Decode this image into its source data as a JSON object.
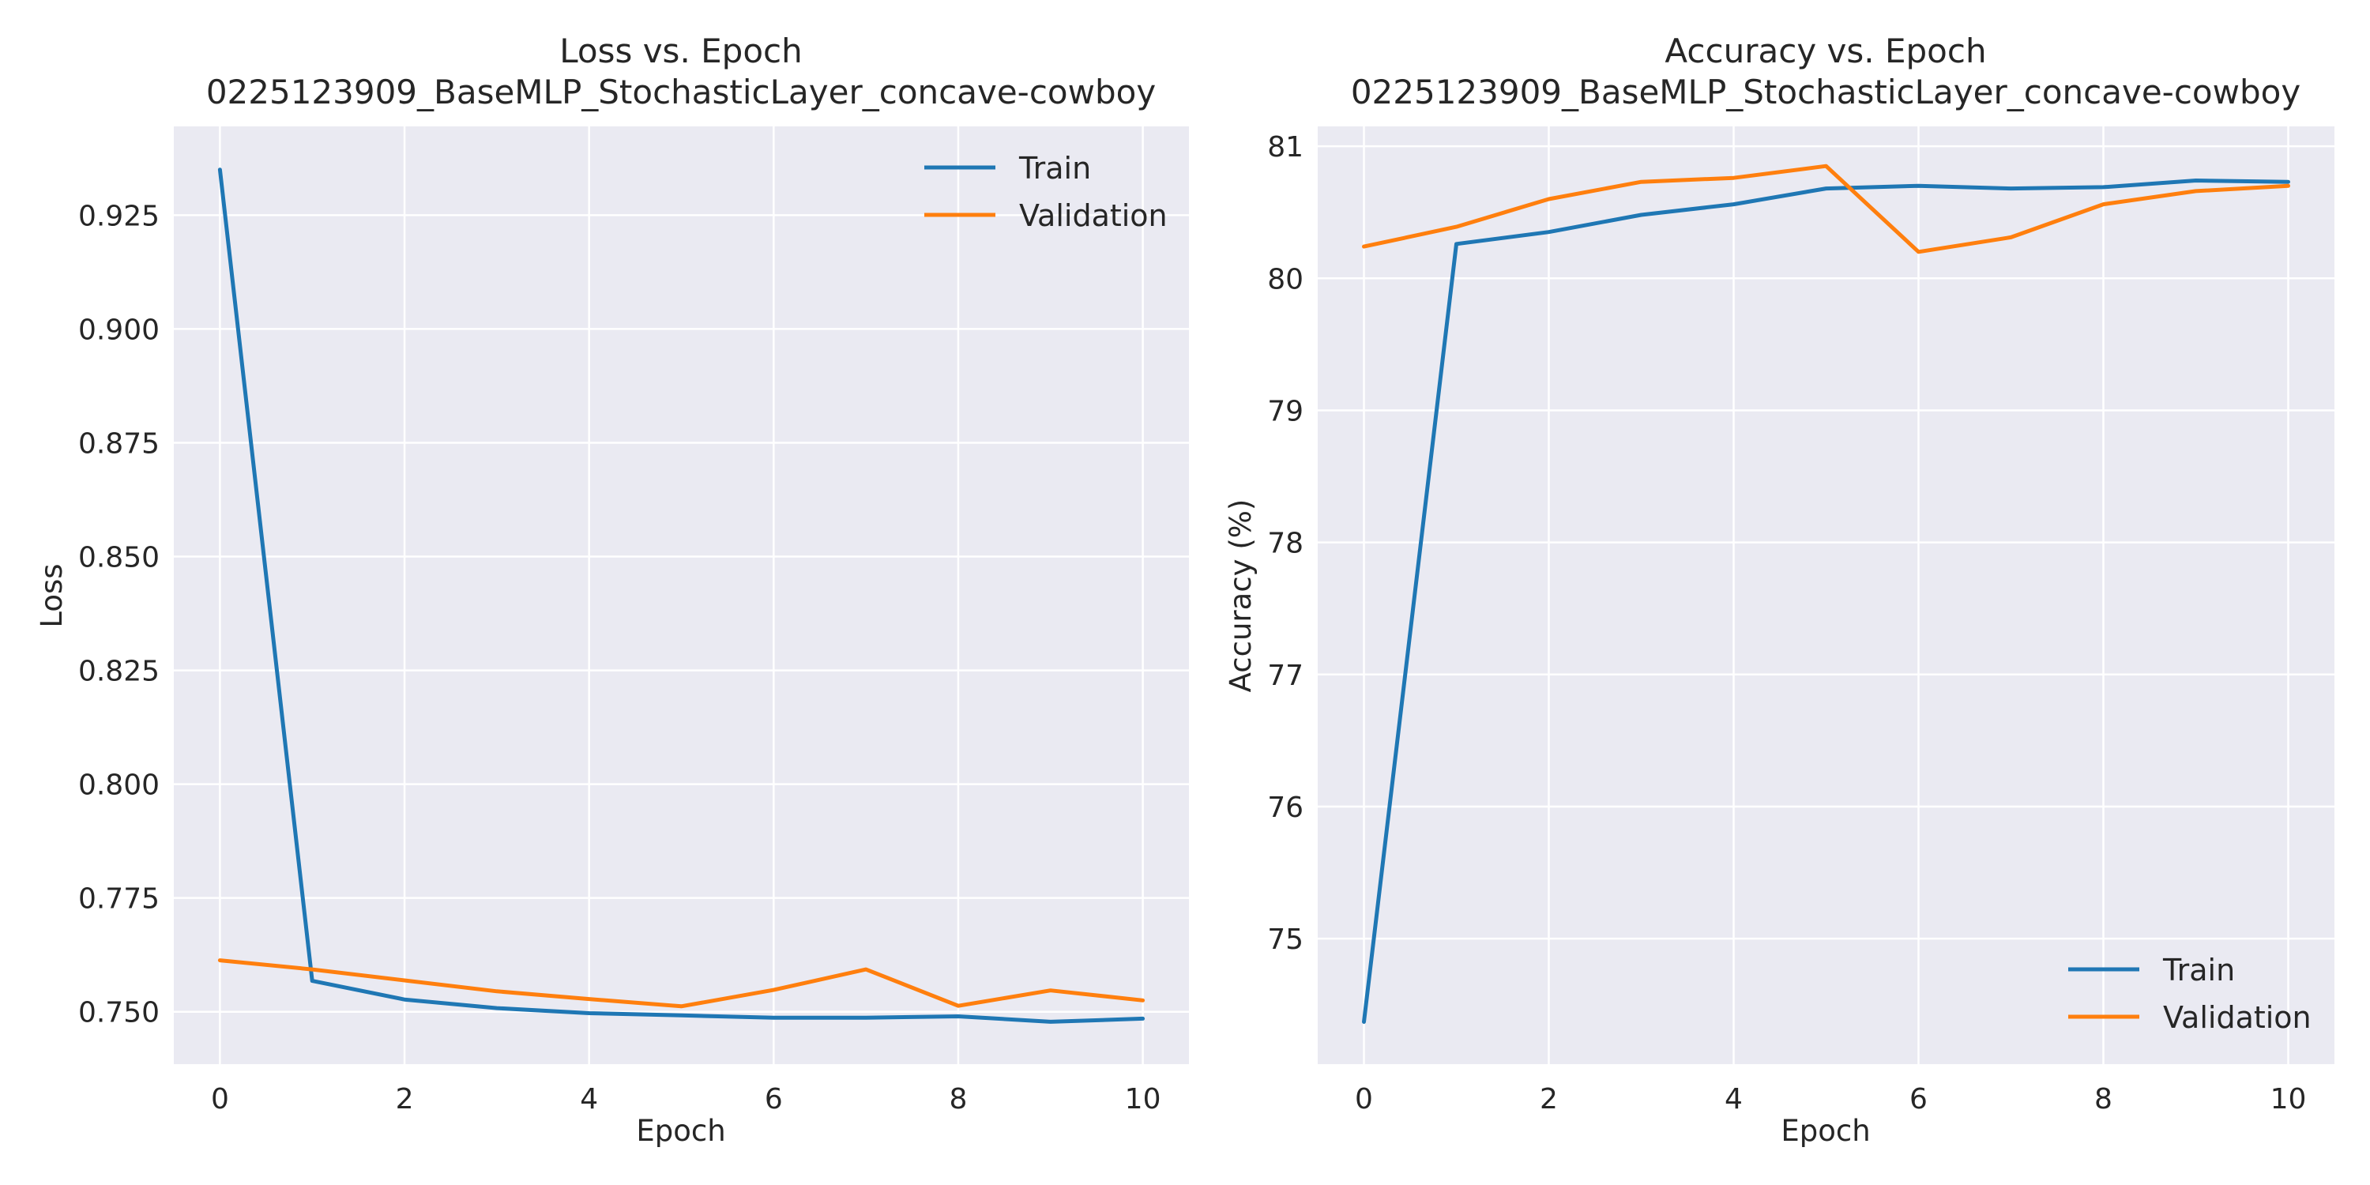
{
  "chart_data": [
    {
      "type": "line",
      "title_line1": "Loss vs. Epoch",
      "title_line2": "0225123909_BaseMLP_StochasticLayer_concave-cowboy",
      "xlabel": "Epoch",
      "ylabel": "Loss",
      "xlim": [
        -0.5,
        10.5
      ],
      "ylim": [
        0.7385,
        0.9445
      ],
      "xticks": [
        0,
        2,
        4,
        6,
        8,
        10
      ],
      "yticks": [
        0.75,
        0.775,
        0.8,
        0.825,
        0.85,
        0.875,
        0.9,
        0.925
      ],
      "ytick_decimals": 3,
      "grid": true,
      "legend_position": "top-right",
      "x": [
        0,
        1,
        2,
        3,
        4,
        5,
        6,
        7,
        8,
        9,
        10
      ],
      "series": [
        {
          "name": "Train",
          "color": "#1f77b4",
          "values": [
            0.935,
            0.7568,
            0.7527,
            0.7508,
            0.7497,
            0.7492,
            0.7487,
            0.7487,
            0.749,
            0.7478,
            0.7485
          ]
        },
        {
          "name": "Validation",
          "color": "#ff7f0e",
          "values": [
            0.7613,
            0.7593,
            0.7569,
            0.7545,
            0.7528,
            0.7512,
            0.7548,
            0.7593,
            0.7513,
            0.7547,
            0.7525
          ]
        }
      ]
    },
    {
      "type": "line",
      "title_line1": "Accuracy vs. Epoch",
      "title_line2": "0225123909_BaseMLP_StochasticLayer_concave-cowboy",
      "xlabel": "Epoch",
      "ylabel": "Accuracy (%)",
      "xlim": [
        -0.5,
        10.5
      ],
      "ylim": [
        74.05,
        81.15
      ],
      "xticks": [
        0,
        2,
        4,
        6,
        8,
        10
      ],
      "yticks": [
        75,
        76,
        77,
        78,
        79,
        80,
        81
      ],
      "ytick_decimals": 0,
      "grid": true,
      "legend_position": "bottom-right",
      "x": [
        0,
        1,
        2,
        3,
        4,
        5,
        6,
        7,
        8,
        9,
        10
      ],
      "series": [
        {
          "name": "Train",
          "color": "#1f77b4",
          "values": [
            74.37,
            80.26,
            80.35,
            80.48,
            80.56,
            80.68,
            80.7,
            80.68,
            80.69,
            80.74,
            80.73
          ]
        },
        {
          "name": "Validation",
          "color": "#ff7f0e",
          "values": [
            80.24,
            80.39,
            80.6,
            80.73,
            80.76,
            80.85,
            80.2,
            80.31,
            80.56,
            80.66,
            80.7
          ]
        }
      ]
    }
  ]
}
